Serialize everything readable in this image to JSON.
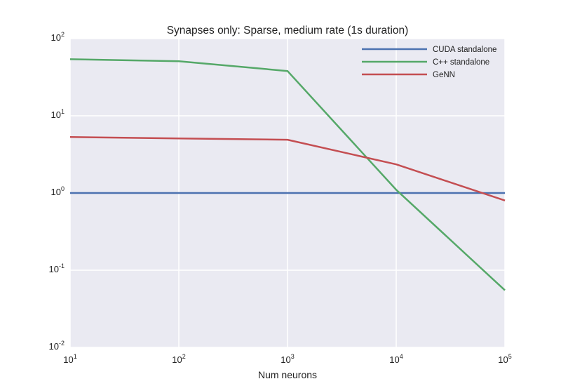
{
  "chart_data": {
    "type": "line",
    "title": "Synapses only: Sparse, medium rate (1s duration)",
    "xlabel": "Num neurons",
    "ylabel": "",
    "x_scale": "log",
    "y_scale": "log",
    "xlim": [
      10,
      100000
    ],
    "ylim": [
      0.01,
      100
    ],
    "x_ticks": [
      {
        "base": "10",
        "exp": "1",
        "value": 10
      },
      {
        "base": "10",
        "exp": "2",
        "value": 100
      },
      {
        "base": "10",
        "exp": "3",
        "value": 1000
      },
      {
        "base": "10",
        "exp": "4",
        "value": 10000
      },
      {
        "base": "10",
        "exp": "5",
        "value": 100000
      }
    ],
    "y_ticks": [
      {
        "base": "10",
        "exp": "2",
        "value": 100
      },
      {
        "base": "10",
        "exp": "1",
        "value": 10
      },
      {
        "base": "10",
        "exp": "0",
        "value": 1
      },
      {
        "base": "10",
        "exp": "-1",
        "value": 0.1
      },
      {
        "base": "10",
        "exp": "-2",
        "value": 0.01
      }
    ],
    "grid": true,
    "legend_position": "top-right",
    "x": [
      10,
      100,
      1000,
      10000,
      100000
    ],
    "series": [
      {
        "name": "CUDA standalone",
        "color": "#4c72b0",
        "values": [
          1.0,
          1.0,
          1.0,
          1.0,
          1.0
        ]
      },
      {
        "name": "C++ standalone",
        "color": "#55a868",
        "values": [
          54,
          51,
          38,
          1.1,
          0.055
        ]
      },
      {
        "name": "GeNN",
        "color": "#c44e52",
        "values": [
          5.3,
          5.1,
          4.9,
          2.35,
          0.8
        ]
      }
    ]
  }
}
